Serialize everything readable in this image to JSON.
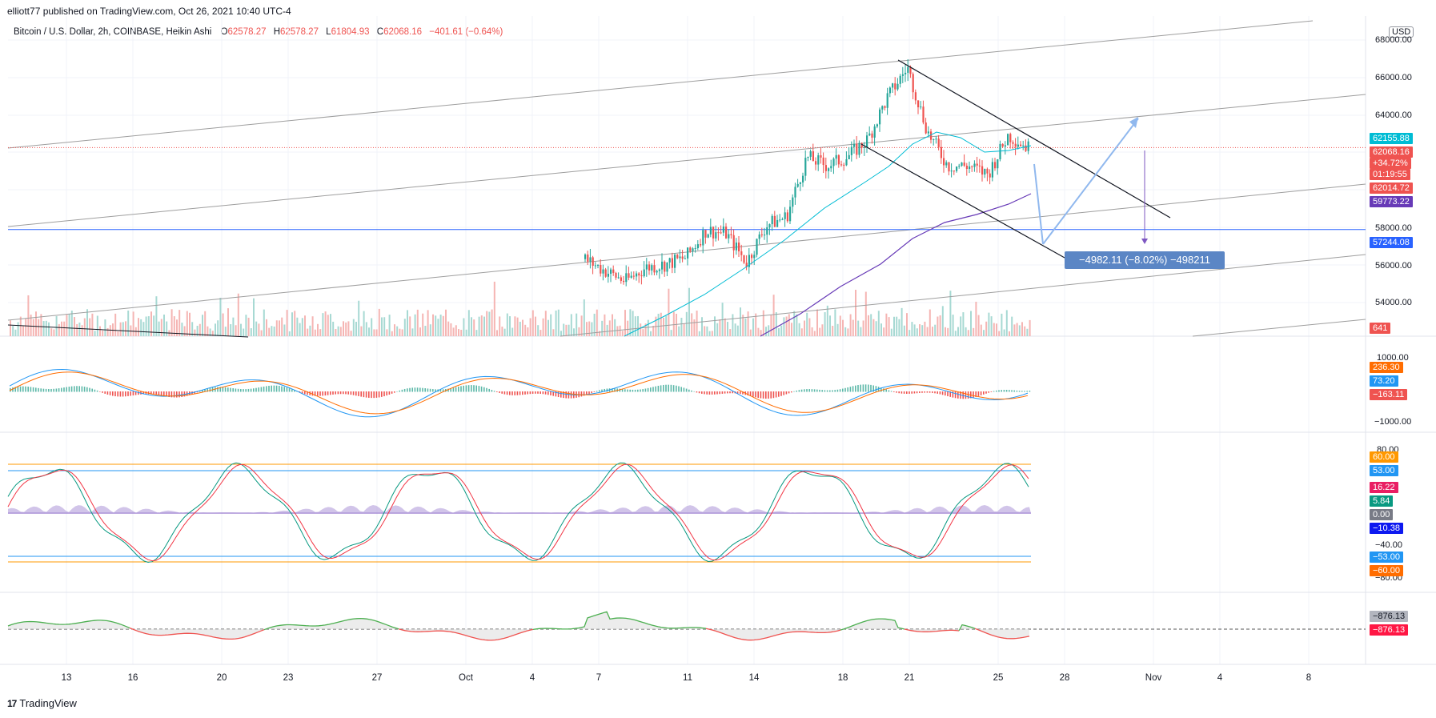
{
  "header": {
    "published_by": "elliott77 published on TradingView.com, Oct 26, 2021 10:40 UTC-4"
  },
  "legend": {
    "symbol": "Bitcoin / U.S. Dollar, 2h, COINBASE, Heikin Ashi",
    "o_label": "O",
    "o_value": "62578.27",
    "h_label": "H",
    "h_value": "62578.27",
    "l_label": "L",
    "l_value": "61804.93",
    "c_label": "C",
    "c_value": "62068.16",
    "change": "−401.61 (−0.64%)"
  },
  "currency_badge": "USD",
  "measure": {
    "text": "−4982.11 (−8.02%) −498211"
  },
  "footer": {
    "logo": "17",
    "brand": "TradingView"
  },
  "price_axis": {
    "ticks": [
      "68000.00",
      "66000.00",
      "64000.00",
      "58000.00",
      "56000.00",
      "54000.00"
    ]
  },
  "price_badges": {
    "ma_fast": "62155.88",
    "last_close": "62068.16",
    "pct": "+34.72%",
    "countdown": "01:19:55",
    "ha_close": "62014.72",
    "ma_slow": "59773.22",
    "hline": "57244.08",
    "volume": "641"
  },
  "macd_axis": {
    "ticks": [
      "1000.00",
      "−1000.00"
    ],
    "badges": [
      "236.30",
      "73.20",
      "−163.11"
    ]
  },
  "stoch_axis": {
    "ticks": [
      "80.00",
      "−40.00",
      "−80.00"
    ],
    "badges": [
      "60.00",
      "53.00",
      "16.22",
      "5.84",
      "0.00",
      "−10.38",
      "−53.00",
      "−60.00"
    ]
  },
  "osc_axis": {
    "badges": [
      "−876.13",
      "−876.13"
    ]
  },
  "time_axis": {
    "ticks": [
      "13",
      "16",
      "20",
      "23",
      "27",
      "Oct",
      "4",
      "7",
      "11",
      "14",
      "18",
      "21",
      "25",
      "28",
      "Nov",
      "4",
      "8"
    ]
  },
  "colors": {
    "up": "#26a69a",
    "down": "#ef5350",
    "ma_fast": "#00bcd4",
    "ma_slow": "#673ab7",
    "hline": "#2962ff",
    "macd": "#2196f3",
    "signal": "#ff6d00",
    "stoch_k": "#089981",
    "stoch_d": "#f23645",
    "band_orange": "#ff9800",
    "band_blue": "#2196f3",
    "arrow": "#90b8ee"
  },
  "chart_data": {
    "type": "candlestick",
    "title": "Bitcoin / U.S. Dollar, 2h, COINBASE, Heikin Ashi",
    "x_ticks": [
      "13",
      "16",
      "20",
      "23",
      "27",
      "Oct",
      "4",
      "7",
      "11",
      "14",
      "18",
      "21",
      "25",
      "28",
      "Nov",
      "4",
      "8"
    ],
    "ylim": [
      52000,
      68500
    ],
    "y_ticks": [
      54000,
      56000,
      58000,
      60000,
      62000,
      64000,
      66000,
      68000
    ],
    "grid": true,
    "price_path": [
      {
        "x": "Oct 5",
        "y": 55500
      },
      {
        "x": "Oct 6",
        "y": 54800
      },
      {
        "x": "Oct 7",
        "y": 54200
      },
      {
        "x": "Oct 8",
        "y": 55000
      },
      {
        "x": "Oct 9",
        "y": 55200
      },
      {
        "x": "Oct 10",
        "y": 55600
      },
      {
        "x": "Oct 11",
        "y": 57200
      },
      {
        "x": "Oct 12",
        "y": 57000
      },
      {
        "x": "Oct 13",
        "y": 55300
      },
      {
        "x": "Oct 14",
        "y": 57500
      },
      {
        "x": "Oct 15",
        "y": 58000
      },
      {
        "x": "Oct 16",
        "y": 61500
      },
      {
        "x": "Oct 17",
        "y": 61000
      },
      {
        "x": "Oct 18",
        "y": 61500
      },
      {
        "x": "Oct 19",
        "y": 62500
      },
      {
        "x": "Oct 20",
        "y": 65000
      },
      {
        "x": "Oct 20 12h",
        "y": 66800
      },
      {
        "x": "Oct 21",
        "y": 63000
      },
      {
        "x": "Oct 22",
        "y": 61000
      },
      {
        "x": "Oct 23",
        "y": 61000
      },
      {
        "x": "Oct 24",
        "y": 60500
      },
      {
        "x": "Oct 25",
        "y": 62800
      },
      {
        "x": "Oct 26",
        "y": 62068.16
      }
    ],
    "series": [
      {
        "value": 62155.88
      },
      {
        "value": 59773.22
      },
      {
        "value": 57244.08
      }
    ],
    "last_close": 62068.16,
    "open": 62578.27,
    "high": 62578.27,
    "low": 61804.93,
    "change": -401.61,
    "change_pct": -0.64,
    "measure_delta": -4982.11,
    "measure_pct": -8.02
  }
}
